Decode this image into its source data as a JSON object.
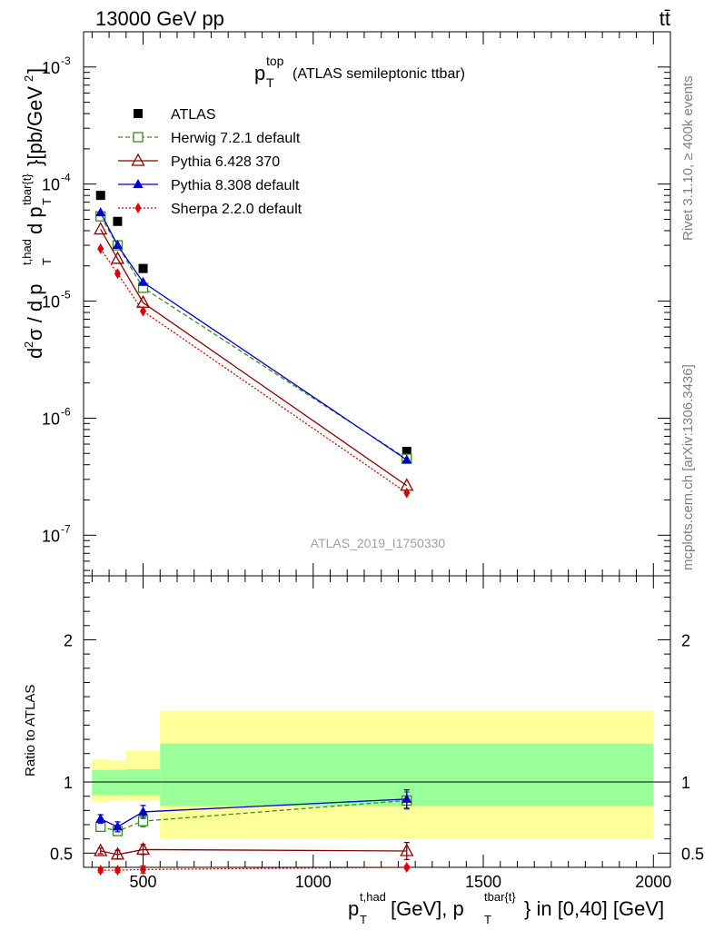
{
  "header": {
    "energy": "13000 GeV pp",
    "process": "tt̄"
  },
  "side_labels": {
    "rivet": "Rivet 3.1.10, ≥ 400k events",
    "mcplots": "mcplots.cern.ch [arXiv:1306.3436]"
  },
  "colors": {
    "atlas": "#000000",
    "herwig": "#3a8a1a",
    "pythia6": "#8b0000",
    "pythia8": "#0000cc",
    "sherpa": "#dd0000",
    "band_inner": "#99ff99",
    "band_outer": "#ffff99"
  },
  "chart_data": [
    {
      "type": "scatter",
      "panel": "main",
      "title": "p_T^top (ATLAS semileptonic ttbar)",
      "title_main": "p",
      "title_sub": "T",
      "title_sup": "top",
      "title_rest": "(ATLAS semileptonic ttbar)",
      "ylabel": "d²σ / d p_T^{t,had} d p_T^{tbar{t}} [pb/GeV²]",
      "yscale": "log",
      "ylim": [
        4.5e-08,
        0.002
      ],
      "xlim": [
        325,
        2050
      ],
      "ytick_labels": [
        "10^-7",
        "10^-6",
        "10^-5",
        "10^-4",
        "10^-3"
      ],
      "analysis_label": "ATLAS_2019_I1750330",
      "series": [
        {
          "name": "ATLAS",
          "style": "square",
          "x": [
            375,
            425,
            500,
            1275
          ],
          "values": [
            8e-05,
            4.8e-05,
            1.9e-05,
            5.2e-07
          ]
        },
        {
          "name": "Herwig 7.2.1 default",
          "style": "open-square-dashed",
          "x": [
            375,
            425,
            500,
            1275
          ],
          "values": [
            5.3e-05,
            3e-05,
            1.3e-05,
            4.5e-07
          ]
        },
        {
          "name": "Pythia 6.428 370",
          "style": "open-triangle-solid",
          "x": [
            375,
            425,
            500,
            1275
          ],
          "values": [
            4.1e-05,
            2.3e-05,
            9.7e-06,
            2.65e-07
          ]
        },
        {
          "name": "Pythia 8.308 default",
          "style": "triangle-solid",
          "x": [
            375,
            425,
            500,
            1275
          ],
          "values": [
            5.7e-05,
            3e-05,
            1.45e-05,
            4.4e-07
          ]
        },
        {
          "name": "Sherpa 2.2.0 default",
          "style": "diamond-dotted",
          "x": [
            375,
            425,
            500,
            1275
          ],
          "values": [
            2.8e-05,
            1.72e-05,
            8.2e-06,
            2.3e-07
          ]
        }
      ]
    },
    {
      "type": "scatter",
      "panel": "ratio",
      "ylabel": "Ratio to ATLAS",
      "xlabel": "p_T^{t,had} [GeV], p_T^{tbar{t}} in [0,40] [GeV]",
      "ylim": [
        0.4,
        2.45
      ],
      "xlim": [
        325,
        2050
      ],
      "yticks": [
        0.5,
        1,
        2
      ],
      "ytick_labels": [
        "0.5",
        "1",
        "2"
      ],
      "xticks": [
        500,
        1000,
        1500,
        2000
      ],
      "xtick_labels": [
        "500",
        "1000",
        "1500",
        "2000"
      ],
      "bins": [
        {
          "lo": 350,
          "hi": 400,
          "inner": [
            0.908,
            1.085
          ],
          "outer": [
            0.86,
            1.16
          ]
        },
        {
          "lo": 400,
          "hi": 450,
          "inner": [
            0.908,
            1.085
          ],
          "outer": [
            0.87,
            1.15
          ]
        },
        {
          "lo": 450,
          "hi": 550,
          "inner": [
            0.91,
            1.09
          ],
          "outer": [
            0.87,
            1.22
          ]
        },
        {
          "lo": 550,
          "hi": 2000,
          "inner": [
            0.83,
            1.27
          ],
          "outer": [
            0.6,
            1.5
          ]
        }
      ],
      "series": [
        {
          "name": "Herwig 7.2.1 default",
          "x": [
            375,
            425,
            500,
            1275
          ],
          "values": [
            0.685,
            0.655,
            0.725,
            0.87
          ],
          "errors": [
            0.025,
            0.03,
            0.04,
            0.06
          ]
        },
        {
          "name": "Pythia 6.428 370",
          "x": [
            375,
            425,
            500,
            1275
          ],
          "values": [
            0.515,
            0.49,
            0.525,
            0.515
          ],
          "errors": [
            0.02,
            0.03,
            0.035,
            0.06
          ]
        },
        {
          "name": "Pythia 8.308 default",
          "x": [
            375,
            425,
            500,
            1275
          ],
          "values": [
            0.74,
            0.685,
            0.79,
            0.88
          ],
          "errors": [
            0.03,
            0.035,
            0.045,
            0.065
          ]
        },
        {
          "name": "Sherpa 2.2.0 default",
          "x": [
            375,
            425,
            500,
            1275
          ],
          "values": [
            0.38,
            0.38,
            0.385,
            0.4
          ],
          "errors": [
            0.015,
            0.015,
            0.025,
            0.01
          ]
        }
      ]
    }
  ]
}
